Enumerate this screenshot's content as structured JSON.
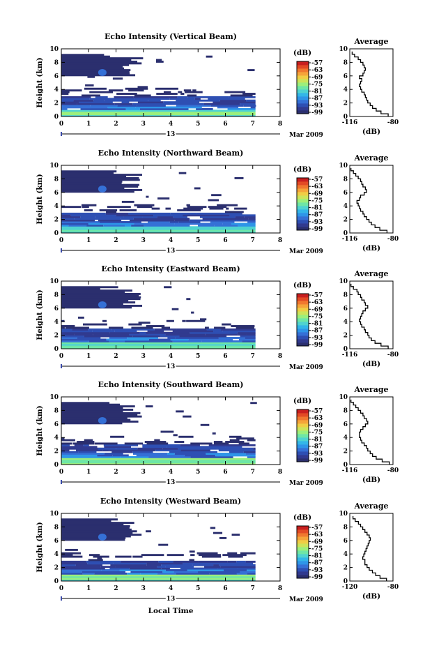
{
  "date_label": "Mar 2009",
  "day_label": "13",
  "colorbar": {
    "unit": "(dB)",
    "ticks": [
      "-57",
      "-63",
      "-69",
      "-75",
      "-81",
      "-87",
      "-93",
      "-99"
    ],
    "colors": [
      "#2b2f6e",
      "#313a8f",
      "#2e4fb3",
      "#3570d6",
      "#2e95e8",
      "#33b6e8",
      "#4fd3d0",
      "#6ee6a6",
      "#9cef7c",
      "#cde35a",
      "#f0cd45",
      "#f5a43a",
      "#f0782f",
      "#e24a25",
      "#c81f1f"
    ]
  },
  "chart_data": [
    {
      "type": "heatmap",
      "title": "Echo Intensity (Vertical Beam)",
      "ylabel": "Height (km)",
      "xlim": [
        0,
        8
      ],
      "ylim": [
        0,
        10
      ],
      "xticks": [
        "0",
        "1",
        "2",
        "3",
        "4",
        "5",
        "6",
        "7",
        "8"
      ],
      "yticks": [
        "0",
        "2",
        "4",
        "6",
        "8",
        "10"
      ],
      "average": {
        "title": "Average",
        "xlabel": "(dB)",
        "xticks": [
          "-116",
          "-80"
        ],
        "xlim": [
          -116,
          -80
        ],
        "heights": [
          0.2,
          0.6,
          1.0,
          1.4,
          1.8,
          2.2,
          2.6,
          3.0,
          3.4,
          3.8,
          4.2,
          4.6,
          5.0,
          5.4,
          5.8,
          6.2,
          6.6,
          7.0,
          7.4,
          7.8,
          8.2,
          8.6,
          9.0,
          9.4
        ],
        "values": [
          -84,
          -90,
          -94,
          -97,
          -99,
          -101,
          -102,
          -103,
          -104,
          -106,
          -107,
          -108,
          -107,
          -106,
          -108,
          -105,
          -104,
          -103,
          -104,
          -105,
          -107,
          -109,
          -112,
          -114
        ]
      }
    },
    {
      "type": "heatmap",
      "title": "Echo Intensity (Northward Beam)",
      "ylabel": "Height (km)",
      "xlim": [
        0,
        8
      ],
      "ylim": [
        0,
        10
      ],
      "xticks": [
        "0",
        "1",
        "2",
        "3",
        "4",
        "5",
        "6",
        "7",
        "8"
      ],
      "yticks": [
        "0",
        "2",
        "4",
        "6",
        "8",
        "10"
      ],
      "average": {
        "title": "Average",
        "xlabel": "(dB)",
        "xticks": [
          "-116",
          "-80"
        ],
        "xlim": [
          -116,
          -80
        ],
        "heights": [
          0.2,
          0.6,
          1.0,
          1.4,
          1.8,
          2.2,
          2.6,
          3.0,
          3.4,
          3.8,
          4.2,
          4.6,
          5.0,
          5.4,
          5.8,
          6.2,
          6.6,
          7.0,
          7.4,
          7.8,
          8.2,
          8.6,
          9.0,
          9.4
        ],
        "values": [
          -85,
          -91,
          -95,
          -98,
          -100,
          -102,
          -104,
          -105,
          -107,
          -108,
          -109,
          -110,
          -108,
          -107,
          -104,
          -102,
          -103,
          -105,
          -106,
          -107,
          -109,
          -111,
          -113,
          -115
        ]
      }
    },
    {
      "type": "heatmap",
      "title": "Echo Intensity (Eastward Beam)",
      "ylabel": "Height (km)",
      "xlim": [
        0,
        8
      ],
      "ylim": [
        0,
        10
      ],
      "xticks": [
        "0",
        "1",
        "2",
        "3",
        "4",
        "5",
        "6",
        "7",
        "8"
      ],
      "yticks": [
        "0",
        "2",
        "4",
        "6",
        "8",
        "10"
      ],
      "average": {
        "title": "Average",
        "xlabel": "(dB)",
        "xticks": [
          "-116",
          "-80"
        ],
        "xlim": [
          -116,
          -80
        ],
        "heights": [
          0.2,
          0.6,
          1.0,
          1.4,
          1.8,
          2.2,
          2.6,
          3.0,
          3.4,
          3.8,
          4.2,
          4.6,
          5.0,
          5.4,
          5.8,
          6.2,
          6.6,
          7.0,
          7.4,
          7.8,
          8.2,
          8.6,
          9.0,
          9.4
        ],
        "values": [
          -84,
          -90,
          -95,
          -98,
          -100,
          -101,
          -103,
          -104,
          -106,
          -107,
          -108,
          -107,
          -106,
          -105,
          -103,
          -101,
          -103,
          -104,
          -106,
          -107,
          -109,
          -110,
          -113,
          -115
        ]
      }
    },
    {
      "type": "heatmap",
      "title": "Echo Intensity (Southward Beam)",
      "ylabel": "Height (km)",
      "xlim": [
        0,
        8
      ],
      "ylim": [
        0,
        10
      ],
      "xticks": [
        "0",
        "1",
        "2",
        "3",
        "4",
        "5",
        "6",
        "7",
        "8"
      ],
      "yticks": [
        "0",
        "2",
        "4",
        "6",
        "8",
        "10"
      ],
      "average": {
        "title": "Average",
        "xlabel": "(dB)",
        "xticks": [
          "-116",
          "-80"
        ],
        "xlim": [
          -116,
          -80
        ],
        "heights": [
          0.2,
          0.6,
          1.0,
          1.4,
          1.8,
          2.2,
          2.6,
          3.0,
          3.4,
          3.8,
          4.2,
          4.6,
          5.0,
          5.4,
          5.8,
          6.2,
          6.6,
          7.0,
          7.4,
          7.8,
          8.2,
          8.6,
          9.0,
          9.4
        ],
        "values": [
          -83,
          -89,
          -94,
          -97,
          -99,
          -101,
          -102,
          -104,
          -106,
          -107,
          -108,
          -108,
          -107,
          -105,
          -103,
          -101,
          -102,
          -104,
          -105,
          -107,
          -109,
          -111,
          -113,
          -115
        ]
      }
    },
    {
      "type": "heatmap",
      "title": "Echo Intensity (Westward Beam)",
      "ylabel": "Height (km)",
      "xlabel": "Local Time",
      "xlim": [
        0,
        8
      ],
      "ylim": [
        0,
        10
      ],
      "xticks": [
        "0",
        "1",
        "2",
        "3",
        "4",
        "5",
        "6",
        "7",
        "8"
      ],
      "yticks": [
        "0",
        "2",
        "4",
        "6",
        "8",
        "10"
      ],
      "average": {
        "title": "Average",
        "xlabel": "(dB)",
        "xticks": [
          "-120",
          "-80"
        ],
        "xlim": [
          -120,
          -80
        ],
        "heights": [
          0.2,
          0.6,
          1.0,
          1.4,
          1.8,
          2.2,
          2.6,
          3.0,
          3.4,
          3.8,
          4.2,
          4.6,
          5.0,
          5.4,
          5.8,
          6.2,
          6.6,
          7.0,
          7.4,
          7.8,
          8.2,
          8.6,
          9.0,
          9.4
        ],
        "values": [
          -86,
          -92,
          -96,
          -99,
          -102,
          -104,
          -106,
          -106,
          -108,
          -107,
          -106,
          -105,
          -104,
          -103,
          -102,
          -101,
          -102,
          -104,
          -106,
          -108,
          -110,
          -112,
          -115,
          -117
        ]
      }
    }
  ]
}
